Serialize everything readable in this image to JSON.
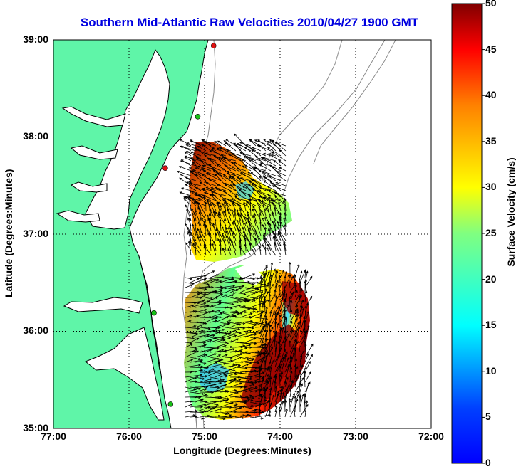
{
  "title": "Southern Mid-Atlantic Raw Velocities 2010/04/27 1900 GMT",
  "map": {
    "xlabel": "Longitude (Degrees:Minutes)",
    "ylabel": "Latitude (Degrees:Minutes)",
    "x_ticks": [
      "77:00",
      "76:00",
      "75:00",
      "74:00",
      "73:00",
      "72:00"
    ],
    "y_ticks": [
      "39:00",
      "38:00",
      "37:00",
      "36:00",
      "35:00"
    ],
    "lon_range": [
      -77,
      -72
    ],
    "lat_range": [
      35,
      39
    ],
    "grid": true,
    "land_color": "#5ff5a8",
    "ocean_color": "#ffffff",
    "coast_color": "#000000",
    "bathymetry_color": "#8a8a8a"
  },
  "colorbar": {
    "label": "Surface Velocity (cm/s)",
    "ticks": [
      "50",
      "45",
      "40",
      "35",
      "30",
      "25",
      "20",
      "15",
      "10",
      "5",
      "0"
    ],
    "range": [
      0,
      50
    ],
    "colormap": "jet"
  },
  "stations": [
    {
      "lon": -74.88,
      "lat": 38.94,
      "color": "#e01010"
    },
    {
      "lon": -75.09,
      "lat": 38.21,
      "color": "#18c018"
    },
    {
      "lon": -75.52,
      "lat": 37.68,
      "color": "#e01010"
    },
    {
      "lon": -75.67,
      "lat": 36.19,
      "color": "#18c018"
    },
    {
      "lon": -75.45,
      "lat": 35.25,
      "color": "#18c018"
    }
  ]
}
